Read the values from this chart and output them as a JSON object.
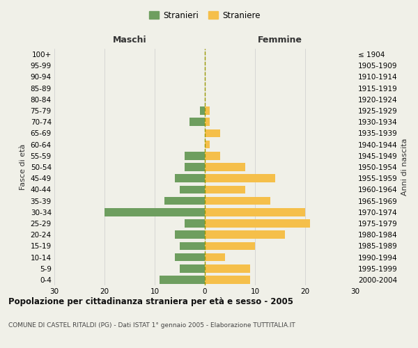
{
  "age_groups": [
    "0-4",
    "5-9",
    "10-14",
    "15-19",
    "20-24",
    "25-29",
    "30-34",
    "35-39",
    "40-44",
    "45-49",
    "50-54",
    "55-59",
    "60-64",
    "65-69",
    "70-74",
    "75-79",
    "80-84",
    "85-89",
    "90-94",
    "95-99",
    "100+"
  ],
  "birth_years": [
    "2000-2004",
    "1995-1999",
    "1990-1994",
    "1985-1989",
    "1980-1984",
    "1975-1979",
    "1970-1974",
    "1965-1969",
    "1960-1964",
    "1955-1959",
    "1950-1954",
    "1945-1949",
    "1940-1944",
    "1935-1939",
    "1930-1934",
    "1925-1929",
    "1920-1924",
    "1915-1919",
    "1910-1914",
    "1905-1909",
    "≤ 1904"
  ],
  "males": [
    9,
    5,
    6,
    5,
    6,
    4,
    20,
    8,
    5,
    6,
    4,
    4,
    0,
    0,
    3,
    1,
    0,
    0,
    0,
    0,
    0
  ],
  "females": [
    9,
    9,
    4,
    10,
    16,
    21,
    20,
    13,
    8,
    14,
    8,
    3,
    1,
    3,
    1,
    1,
    0,
    0,
    0,
    0,
    0
  ],
  "male_color": "#6e9e5f",
  "female_color": "#f5bf4a",
  "center_line_color": "#999900",
  "grid_color": "#cccccc",
  "background_color": "#f0f0e8",
  "xlim": 30,
  "title": "Popolazione per cittadinanza straniera per età e sesso - 2005",
  "subtitle": "COMUNE DI CASTEL RITALDI (PG) - Dati ISTAT 1° gennaio 2005 - Elaborazione TUTTITALIA.IT",
  "xlabel_left": "Maschi",
  "xlabel_right": "Femmine",
  "ylabel_left": "Fasce di età",
  "ylabel_right": "Anni di nascita",
  "legend_male": "Stranieri",
  "legend_female": "Straniere",
  "xticks": [
    -30,
    -20,
    -10,
    0,
    10,
    20,
    30
  ],
  "xtick_labels": [
    "30",
    "20",
    "10",
    "0",
    "10",
    "20",
    "30"
  ]
}
